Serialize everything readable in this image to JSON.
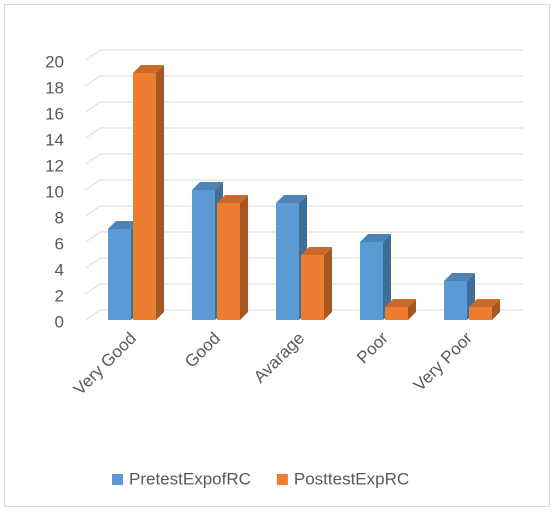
{
  "chart_data": {
    "type": "bar3d",
    "categories": [
      "Very Good",
      "Good",
      "Avarage",
      "Poor",
      "Very Poor"
    ],
    "series": [
      {
        "name": "PretestExpofRC",
        "color": "#5b9bd5",
        "values": [
          7,
          10,
          9,
          6,
          3
        ]
      },
      {
        "name": "PosttestExpRC",
        "color": "#ed7d31",
        "values": [
          19,
          9,
          5,
          1,
          1
        ]
      }
    ],
    "ylim": [
      0,
      20
    ],
    "yticks": [
      0,
      2,
      4,
      6,
      8,
      10,
      12,
      14,
      16,
      18,
      20
    ],
    "grid": true,
    "legend": "bottom"
  }
}
